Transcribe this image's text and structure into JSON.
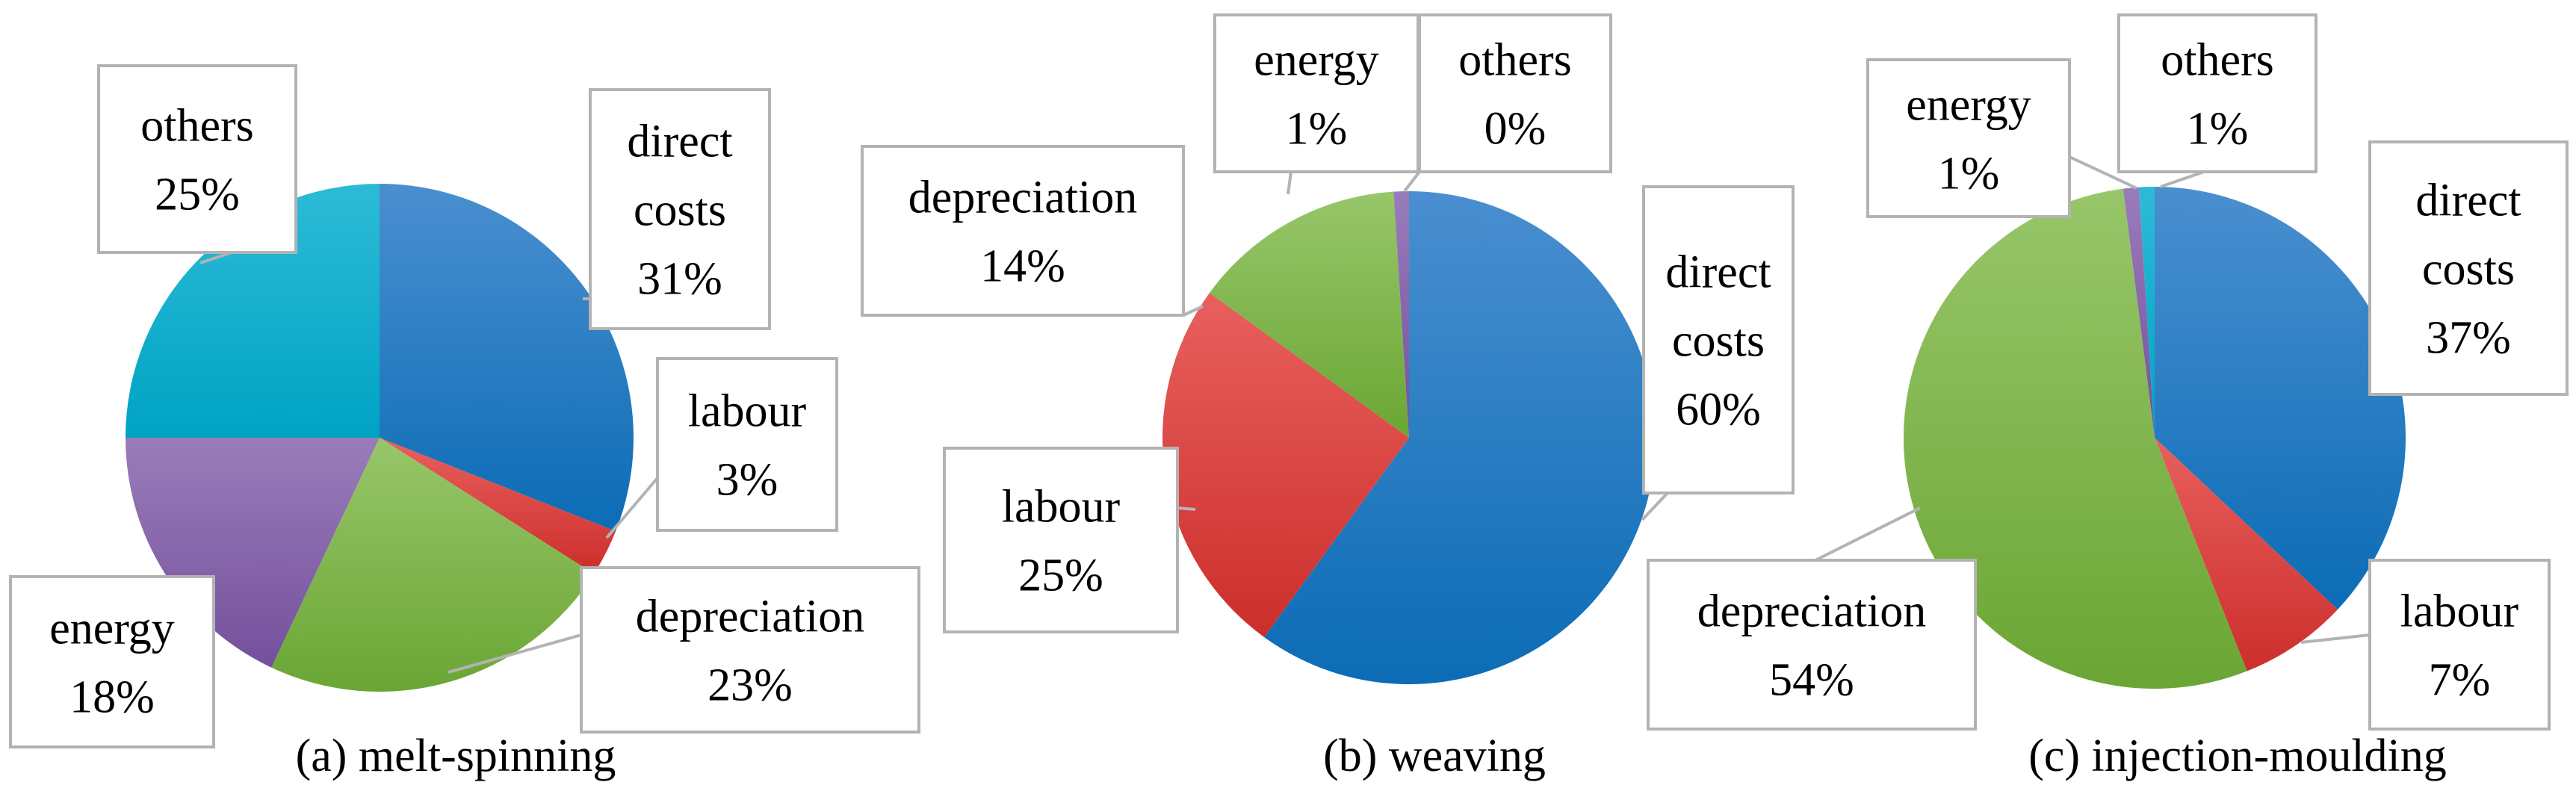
{
  "chart_data": [
    {
      "type": "pie",
      "title": "(a) melt-spinning",
      "slices": [
        {
          "label_lines": [
            "direct",
            "costs",
            "31%"
          ],
          "value": 31,
          "color": "blue"
        },
        {
          "label_lines": [
            "labour",
            "3%"
          ],
          "value": 3,
          "color": "red"
        },
        {
          "label_lines": [
            "depreciation",
            "23%"
          ],
          "value": 23,
          "color": "green"
        },
        {
          "label_lines": [
            "energy",
            "18%"
          ],
          "value": 18,
          "color": "purple"
        },
        {
          "label_lines": [
            "others",
            "25%"
          ],
          "value": 25,
          "color": "cyan"
        }
      ]
    },
    {
      "type": "pie",
      "title": "(b) weaving",
      "slices": [
        {
          "label_lines": [
            "direct",
            "costs",
            "60%"
          ],
          "value": 60,
          "color": "blue"
        },
        {
          "label_lines": [
            "labour",
            "25%"
          ],
          "value": 25,
          "color": "red"
        },
        {
          "label_lines": [
            "depreciation",
            "14%"
          ],
          "value": 14,
          "color": "green"
        },
        {
          "label_lines": [
            "energy",
            "1%"
          ],
          "value": 1,
          "color": "purple"
        },
        {
          "label_lines": [
            "others",
            "0%"
          ],
          "value": 0,
          "color": "cyan"
        }
      ]
    },
    {
      "type": "pie",
      "title": "(c) injection-moulding",
      "slices": [
        {
          "label_lines": [
            "direct",
            "costs",
            "37%"
          ],
          "value": 37,
          "color": "blue"
        },
        {
          "label_lines": [
            "labour",
            "7%"
          ],
          "value": 7,
          "color": "red"
        },
        {
          "label_lines": [
            "depreciation",
            "54%"
          ],
          "value": 54,
          "color": "green"
        },
        {
          "label_lines": [
            "energy",
            "1%"
          ],
          "value": 1,
          "color": "purple"
        },
        {
          "label_lines": [
            "others",
            "1%"
          ],
          "value": 1,
          "color": "cyan"
        }
      ]
    }
  ],
  "colors": {
    "blue": [
      "#4a8fd0",
      "#0b6cb5"
    ],
    "red": [
      "#e8605e",
      "#cc2e2b"
    ],
    "green": [
      "#98c66a",
      "#6aa634"
    ],
    "purple": [
      "#9a7cba",
      "#74509c"
    ],
    "cyan": [
      "#2cbbd6",
      "#00a3c4"
    ]
  }
}
